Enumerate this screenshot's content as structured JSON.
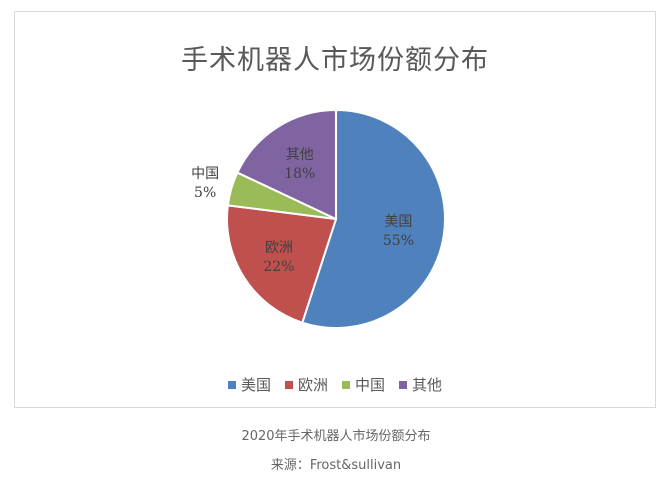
{
  "chart_data": {
    "type": "pie",
    "title": "手术机器人市场份额分布",
    "slices": [
      {
        "label": "美国",
        "value": 55,
        "value_label": "55%",
        "color": "#4F81BD"
      },
      {
        "label": "欧洲",
        "value": 22,
        "value_label": "22%",
        "color": "#C0504D"
      },
      {
        "label": "中国",
        "value": 5,
        "value_label": "5%",
        "color": "#9BBB59"
      },
      {
        "label": "其他",
        "value": 18,
        "value_label": "18%",
        "color": "#8064A2"
      }
    ],
    "legend_position": "bottom"
  },
  "captions": {
    "caption": "2020年手术机器人市场份额分布",
    "source": "来源：Frost&sullivan"
  }
}
